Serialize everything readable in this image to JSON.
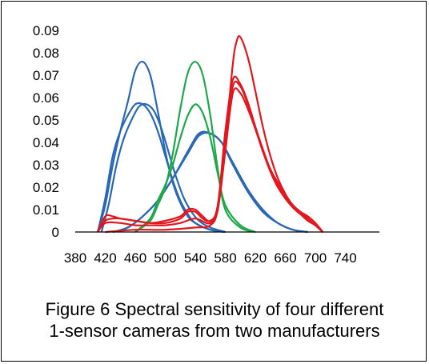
{
  "caption": {
    "line1": "Figure 6 Spectral sensitivity of four different",
    "line2": "1-sensor cameras from two manufacturers"
  },
  "chart_data": {
    "type": "line",
    "title": "",
    "xlabel": "",
    "ylabel": "",
    "xlim": [
      380,
      750
    ],
    "ylim": [
      0,
      0.09
    ],
    "x_ticks": [
      "380",
      "420",
      "460",
      "500",
      "540",
      "580",
      "620",
      "660",
      "700",
      "740"
    ],
    "y_ticks": [
      "0",
      "0.01",
      "0.02",
      "0.03",
      "0.04",
      "0.05",
      "0.06",
      "0.07",
      "0.08",
      "0.09"
    ],
    "grid": false,
    "legend": "none",
    "series": [
      {
        "color": "#2a68b6",
        "x": [
          410,
          420,
          430,
          440,
          450,
          460,
          470,
          480,
          490,
          500,
          510,
          520,
          530,
          540,
          560,
          580
        ],
        "y": [
          0,
          0.012,
          0.03,
          0.045,
          0.058,
          0.072,
          0.076,
          0.07,
          0.054,
          0.036,
          0.022,
          0.013,
          0.007,
          0.004,
          0.001,
          0
        ]
      },
      {
        "color": "#2a68b6",
        "x": [
          410,
          420,
          430,
          440,
          450,
          460,
          470,
          480,
          490,
          500,
          510,
          520,
          530,
          540,
          560,
          580
        ],
        "y": [
          0,
          0.015,
          0.034,
          0.045,
          0.052,
          0.057,
          0.057,
          0.053,
          0.045,
          0.034,
          0.023,
          0.014,
          0.008,
          0.004,
          0.001,
          0
        ]
      },
      {
        "color": "#2a68b6",
        "x": [
          415,
          425,
          435,
          445,
          455,
          465,
          475,
          485,
          495,
          505,
          515,
          525,
          535,
          545,
          560,
          580
        ],
        "y": [
          0,
          0.013,
          0.03,
          0.042,
          0.05,
          0.056,
          0.057,
          0.054,
          0.046,
          0.035,
          0.024,
          0.015,
          0.009,
          0.005,
          0.002,
          0
        ]
      },
      {
        "color": "#2a68b6",
        "x": [
          430,
          450,
          470,
          490,
          510,
          530,
          545,
          560,
          575,
          590,
          610,
          630,
          650,
          670,
          690
        ],
        "y": [
          0,
          0.002,
          0.007,
          0.014,
          0.024,
          0.036,
          0.044,
          0.044,
          0.04,
          0.03,
          0.018,
          0.009,
          0.004,
          0.001,
          0
        ]
      },
      {
        "color": "#2a68b6",
        "x": [
          430,
          450,
          470,
          490,
          510,
          530,
          545,
          560,
          575,
          590,
          610,
          630,
          650,
          670,
          690
        ],
        "y": [
          0,
          0.002,
          0.007,
          0.014,
          0.024,
          0.035,
          0.043,
          0.044,
          0.04,
          0.031,
          0.019,
          0.01,
          0.004,
          0.001,
          0
        ]
      },
      {
        "color": "#1ea84a",
        "x": [
          460,
          480,
          490,
          500,
          510,
          520,
          530,
          540,
          550,
          560,
          570,
          580,
          600,
          620
        ],
        "y": [
          0,
          0.005,
          0.012,
          0.02,
          0.035,
          0.055,
          0.071,
          0.076,
          0.07,
          0.052,
          0.028,
          0.01,
          0.002,
          0
        ]
      },
      {
        "color": "#1ea84a",
        "x": [
          460,
          480,
          490,
          500,
          510,
          520,
          530,
          540,
          550,
          560,
          570,
          580,
          600,
          620
        ],
        "y": [
          0,
          0.006,
          0.014,
          0.021,
          0.03,
          0.042,
          0.052,
          0.057,
          0.053,
          0.042,
          0.026,
          0.012,
          0.003,
          0
        ]
      },
      {
        "color": "#e3161e",
        "x": [
          410,
          420,
          430,
          440,
          460,
          480,
          500,
          520,
          530,
          540,
          550,
          560,
          570,
          580,
          590,
          595,
          600,
          610,
          620,
          630,
          640,
          650,
          660,
          670,
          680,
          690,
          700,
          710
        ],
        "y": [
          0,
          0.005,
          0.006,
          0.006,
          0.005,
          0.004,
          0.004,
          0.006,
          0.009,
          0.009,
          0.006,
          0.005,
          0.01,
          0.04,
          0.075,
          0.085,
          0.087,
          0.078,
          0.063,
          0.047,
          0.034,
          0.024,
          0.017,
          0.012,
          0.009,
          0.006,
          0.003,
          0
        ]
      },
      {
        "color": "#e3161e",
        "x": [
          410,
          420,
          430,
          440,
          460,
          480,
          500,
          520,
          530,
          540,
          550,
          560,
          570,
          580,
          590,
          600,
          610,
          620,
          630,
          640,
          650,
          660,
          670,
          680,
          690,
          700,
          710
        ],
        "y": [
          0,
          0.007,
          0.007,
          0.006,
          0.005,
          0.004,
          0.005,
          0.007,
          0.01,
          0.01,
          0.007,
          0.005,
          0.012,
          0.045,
          0.068,
          0.066,
          0.058,
          0.047,
          0.037,
          0.028,
          0.022,
          0.016,
          0.012,
          0.009,
          0.007,
          0.004,
          0
        ]
      },
      {
        "color": "#e3161e",
        "x": [
          410,
          420,
          440,
          460,
          480,
          500,
          520,
          540,
          560,
          570,
          580,
          590,
          600,
          610,
          620,
          630,
          640,
          650,
          660,
          670,
          680,
          690,
          700,
          710
        ],
        "y": [
          0,
          0.004,
          0.004,
          0.003,
          0.003,
          0.003,
          0.004,
          0.006,
          0.004,
          0.012,
          0.04,
          0.065,
          0.065,
          0.057,
          0.047,
          0.036,
          0.028,
          0.021,
          0.015,
          0.011,
          0.008,
          0.006,
          0.003,
          0
        ]
      },
      {
        "color": "#e3161e",
        "x": [
          420,
          460,
          500,
          540,
          560,
          570,
          580,
          590,
          600,
          610,
          620,
          630,
          640,
          650,
          660,
          670,
          680,
          690,
          700,
          710
        ],
        "y": [
          0,
          0.001,
          0.001,
          0.002,
          0.003,
          0.01,
          0.036,
          0.062,
          0.062,
          0.055,
          0.046,
          0.036,
          0.027,
          0.02,
          0.015,
          0.011,
          0.008,
          0.005,
          0.003,
          0
        ]
      }
    ]
  }
}
